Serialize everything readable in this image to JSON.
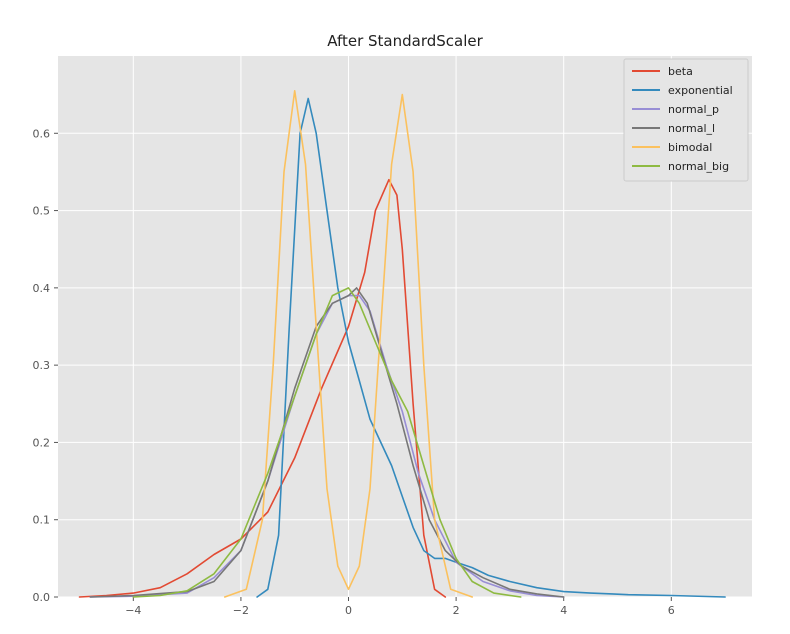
{
  "chart_data": {
    "type": "line",
    "title": "After StandardScaler",
    "xlabel": "",
    "ylabel": "",
    "xlim": [
      -5.4,
      7.5
    ],
    "ylim": [
      0.0,
      0.7
    ],
    "x_ticks": [
      -4,
      -2,
      0,
      2,
      4,
      6
    ],
    "y_ticks": [
      0.0,
      0.1,
      0.2,
      0.3,
      0.4,
      0.5,
      0.6
    ],
    "x_tick_labels": [
      "−4",
      "−2",
      "0",
      "2",
      "4",
      "6"
    ],
    "y_tick_labels": [
      "0.0",
      "0.1",
      "0.2",
      "0.3",
      "0.4",
      "0.5",
      "0.6"
    ],
    "grid": true,
    "legend_position": "top-right",
    "series": [
      {
        "name": "beta",
        "color": "#E24A33",
        "points": [
          [
            -5.0,
            0.0
          ],
          [
            -4.5,
            0.002
          ],
          [
            -4.0,
            0.005
          ],
          [
            -3.5,
            0.012
          ],
          [
            -3.0,
            0.03
          ],
          [
            -2.5,
            0.055
          ],
          [
            -2.0,
            0.075
          ],
          [
            -1.5,
            0.11
          ],
          [
            -1.0,
            0.18
          ],
          [
            -0.5,
            0.27
          ],
          [
            0.0,
            0.35
          ],
          [
            0.3,
            0.42
          ],
          [
            0.5,
            0.5
          ],
          [
            0.75,
            0.54
          ],
          [
            0.9,
            0.52
          ],
          [
            1.0,
            0.45
          ],
          [
            1.2,
            0.25
          ],
          [
            1.4,
            0.08
          ],
          [
            1.6,
            0.01
          ],
          [
            1.8,
            0.0
          ]
        ]
      },
      {
        "name": "exponential",
        "color": "#348ABD",
        "points": [
          [
            -1.7,
            0.0
          ],
          [
            -1.5,
            0.01
          ],
          [
            -1.3,
            0.08
          ],
          [
            -1.1,
            0.35
          ],
          [
            -0.9,
            0.6
          ],
          [
            -0.75,
            0.645
          ],
          [
            -0.6,
            0.6
          ],
          [
            -0.4,
            0.5
          ],
          [
            -0.2,
            0.4
          ],
          [
            0.0,
            0.33
          ],
          [
            0.2,
            0.28
          ],
          [
            0.4,
            0.23
          ],
          [
            0.6,
            0.2
          ],
          [
            0.8,
            0.17
          ],
          [
            1.0,
            0.13
          ],
          [
            1.2,
            0.09
          ],
          [
            1.4,
            0.06
          ],
          [
            1.6,
            0.05
          ],
          [
            1.8,
            0.05
          ],
          [
            2.0,
            0.045
          ],
          [
            2.3,
            0.038
          ],
          [
            2.6,
            0.028
          ],
          [
            3.0,
            0.02
          ],
          [
            3.5,
            0.012
          ],
          [
            4.0,
            0.007
          ],
          [
            4.5,
            0.005
          ],
          [
            4.9,
            0.004
          ],
          [
            5.2,
            0.003
          ],
          [
            6.0,
            0.002
          ],
          [
            7.0,
            0.0
          ]
        ]
      },
      {
        "name": "normal_p",
        "color": "#988ED5",
        "points": [
          [
            -4.8,
            0.0
          ],
          [
            -4.0,
            0.001
          ],
          [
            -3.0,
            0.005
          ],
          [
            -2.5,
            0.025
          ],
          [
            -2.0,
            0.06
          ],
          [
            -1.5,
            0.15
          ],
          [
            -1.0,
            0.26
          ],
          [
            -0.6,
            0.34
          ],
          [
            -0.3,
            0.38
          ],
          [
            0.0,
            0.39
          ],
          [
            0.2,
            0.39
          ],
          [
            0.4,
            0.37
          ],
          [
            0.7,
            0.3
          ],
          [
            1.0,
            0.24
          ],
          [
            1.3,
            0.16
          ],
          [
            1.6,
            0.1
          ],
          [
            2.0,
            0.045
          ],
          [
            2.5,
            0.02
          ],
          [
            3.0,
            0.008
          ],
          [
            3.5,
            0.002
          ],
          [
            4.0,
            0.0
          ]
        ]
      },
      {
        "name": "normal_l",
        "color": "#777777",
        "points": [
          [
            -4.8,
            0.0
          ],
          [
            -4.0,
            0.002
          ],
          [
            -3.0,
            0.007
          ],
          [
            -2.5,
            0.02
          ],
          [
            -2.0,
            0.06
          ],
          [
            -1.5,
            0.15
          ],
          [
            -1.0,
            0.27
          ],
          [
            -0.6,
            0.35
          ],
          [
            -0.3,
            0.38
          ],
          [
            0.0,
            0.39
          ],
          [
            0.15,
            0.4
          ],
          [
            0.35,
            0.38
          ],
          [
            0.6,
            0.32
          ],
          [
            0.9,
            0.25
          ],
          [
            1.2,
            0.17
          ],
          [
            1.5,
            0.1
          ],
          [
            1.8,
            0.06
          ],
          [
            2.1,
            0.04
          ],
          [
            2.5,
            0.025
          ],
          [
            3.0,
            0.01
          ],
          [
            3.5,
            0.004
          ],
          [
            4.0,
            0.0
          ]
        ]
      },
      {
        "name": "bimodal",
        "color": "#FBC15E",
        "points": [
          [
            -2.3,
            0.0
          ],
          [
            -1.9,
            0.01
          ],
          [
            -1.6,
            0.1
          ],
          [
            -1.4,
            0.3
          ],
          [
            -1.2,
            0.55
          ],
          [
            -1.0,
            0.655
          ],
          [
            -0.8,
            0.56
          ],
          [
            -0.6,
            0.35
          ],
          [
            -0.4,
            0.14
          ],
          [
            -0.2,
            0.04
          ],
          [
            0.0,
            0.01
          ],
          [
            0.2,
            0.04
          ],
          [
            0.4,
            0.14
          ],
          [
            0.6,
            0.35
          ],
          [
            0.8,
            0.56
          ],
          [
            1.0,
            0.65
          ],
          [
            1.2,
            0.55
          ],
          [
            1.4,
            0.3
          ],
          [
            1.6,
            0.1
          ],
          [
            1.9,
            0.01
          ],
          [
            2.3,
            0.0
          ]
        ]
      },
      {
        "name": "normal_big",
        "color": "#8EBA42",
        "points": [
          [
            -4.0,
            0.0
          ],
          [
            -3.5,
            0.002
          ],
          [
            -3.0,
            0.008
          ],
          [
            -2.5,
            0.03
          ],
          [
            -2.0,
            0.075
          ],
          [
            -1.5,
            0.16
          ],
          [
            -1.0,
            0.26
          ],
          [
            -0.6,
            0.34
          ],
          [
            -0.3,
            0.39
          ],
          [
            0.0,
            0.4
          ],
          [
            0.2,
            0.38
          ],
          [
            0.5,
            0.33
          ],
          [
            0.8,
            0.28
          ],
          [
            1.1,
            0.24
          ],
          [
            1.4,
            0.17
          ],
          [
            1.7,
            0.1
          ],
          [
            2.0,
            0.05
          ],
          [
            2.3,
            0.02
          ],
          [
            2.7,
            0.005
          ],
          [
            3.2,
            0.0
          ]
        ]
      }
    ]
  }
}
